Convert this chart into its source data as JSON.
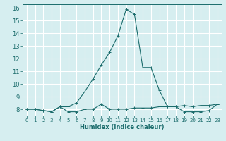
{
  "xlabel": "Humidex (Indice chaleur)",
  "ylabel": "",
  "bg_color": "#d6eef0",
  "grid_color": "#ffffff",
  "line_color": "#1a6b6b",
  "x_line1": [
    0,
    1,
    2,
    3,
    4,
    5,
    6,
    7,
    8,
    9,
    10,
    11,
    12,
    13,
    14,
    15,
    16,
    17,
    18,
    19,
    20,
    21,
    22,
    23
  ],
  "y_line1": [
    8.0,
    8.0,
    7.9,
    7.8,
    8.2,
    7.8,
    7.8,
    8.0,
    8.0,
    8.4,
    8.0,
    8.0,
    8.0,
    8.1,
    8.1,
    8.1,
    8.2,
    8.2,
    8.2,
    7.8,
    7.8,
    7.8,
    7.9,
    8.4
  ],
  "x_line2": [
    0,
    1,
    2,
    3,
    4,
    5,
    6,
    7,
    8,
    9,
    10,
    11,
    12,
    13,
    14,
    15,
    16,
    17,
    18,
    19,
    20,
    21,
    22,
    23
  ],
  "y_line2": [
    8.0,
    8.0,
    7.9,
    7.8,
    8.2,
    8.2,
    8.5,
    9.4,
    10.4,
    11.5,
    12.5,
    13.8,
    15.9,
    15.5,
    11.3,
    11.3,
    9.5,
    8.2,
    8.2,
    8.3,
    8.2,
    8.3,
    8.3,
    8.4
  ],
  "ylim": [
    7.5,
    16.3
  ],
  "xlim": [
    -0.5,
    23.5
  ],
  "yticks": [
    8,
    9,
    10,
    11,
    12,
    13,
    14,
    15,
    16
  ],
  "xticks": [
    0,
    1,
    2,
    3,
    4,
    5,
    6,
    7,
    8,
    9,
    10,
    11,
    12,
    13,
    14,
    15,
    16,
    17,
    18,
    19,
    20,
    21,
    22,
    23
  ],
  "xlabel_fontsize": 6,
  "tick_fontsize": 5
}
